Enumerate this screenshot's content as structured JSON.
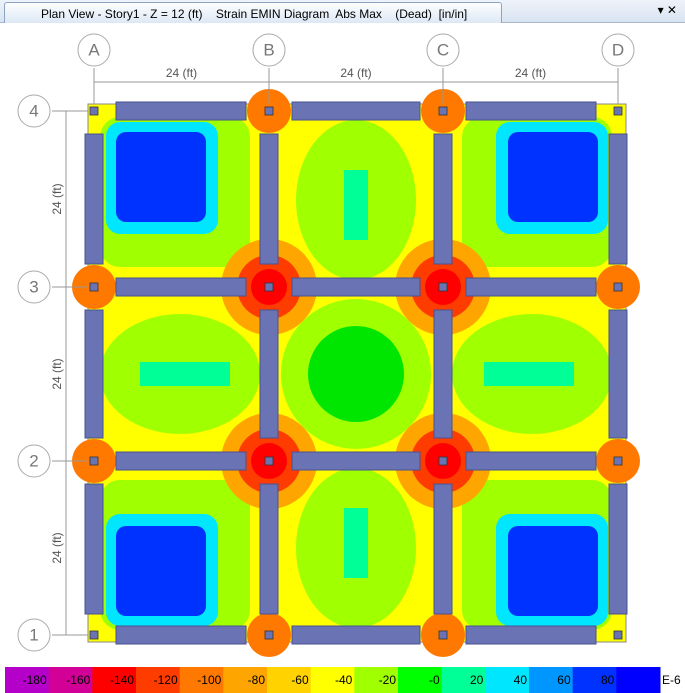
{
  "window": {
    "title": "Plan View - Story1 - Z = 12 (ft)    Strain EMIN Diagram  Abs Max    (Dead)  [in/in]",
    "controls": "▾ ✕"
  },
  "grid": {
    "columns": [
      "A",
      "B",
      "C",
      "D"
    ],
    "rows": [
      "4",
      "3",
      "2",
      "1"
    ],
    "x_dimensions": [
      "24 (ft)",
      "24 (ft)",
      "24 (ft)"
    ],
    "y_dimensions": [
      "24 (ft)",
      "24 (ft)",
      "24 (ft)"
    ]
  },
  "legend": {
    "labels": [
      "-180",
      "-160",
      "-140",
      "-120",
      "-100",
      "-80",
      "-60",
      "-40",
      "-20",
      "-0",
      "20",
      "40",
      "60",
      "80"
    ],
    "unit": "E-6",
    "colors": [
      "#b400c8",
      "#d20096",
      "#ff0000",
      "#ff3c00",
      "#ff7800",
      "#ffa500",
      "#ffd200",
      "#ffff00",
      "#a0ff00",
      "#00ff00",
      "#00ff96",
      "#00e6ff",
      "#0096ff",
      "#0032ff",
      "#0000ff"
    ]
  }
}
